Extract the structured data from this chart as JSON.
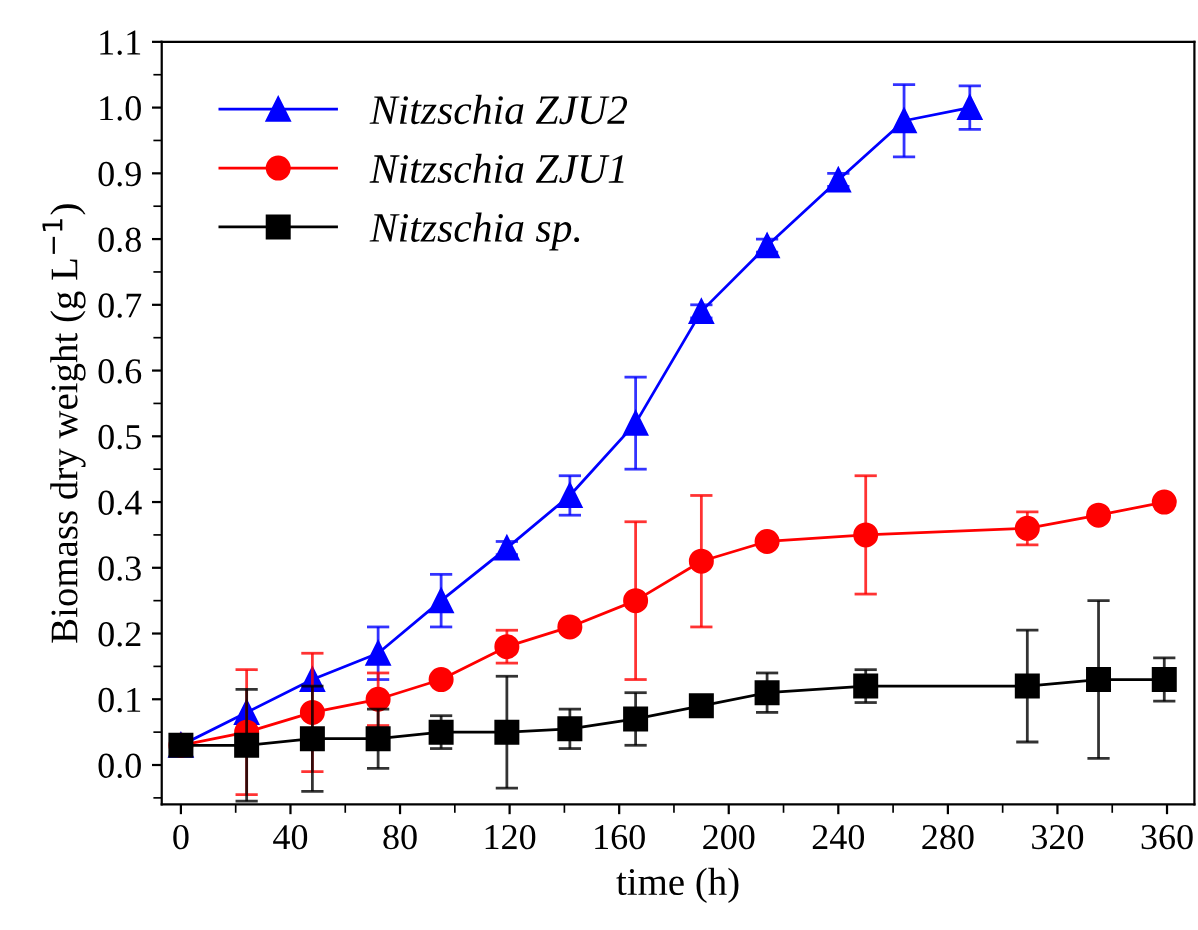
{
  "chart_data": {
    "type": "line",
    "xlabel": "time (h)",
    "ylabel": "Biomass dry weight (g L$^{−1}$)",
    "xlim": [
      -7,
      370
    ],
    "ylim": [
      -0.06,
      1.1
    ],
    "xticks": [
      0,
      40,
      80,
      120,
      160,
      200,
      240,
      280,
      320,
      360
    ],
    "yticks": [
      {
        "value": 0,
        "label": "0.0"
      },
      0.1,
      0.2,
      0.3,
      0.4,
      0.5,
      0.6,
      0.7,
      0.8,
      0.9,
      {
        "value": 1,
        "label": "1.0"
      },
      1.1
    ],
    "grid": false,
    "legend": "top left",
    "line_style": "solid",
    "series": [
      {
        "name": "Nitzschia ZJU2",
        "color": "#0000ff",
        "marker": "triangle",
        "x": [
          0,
          24,
          48,
          72,
          95,
          119,
          142,
          166,
          190,
          214,
          240,
          264,
          288
        ],
        "values": [
          0.03,
          0.08,
          0.13,
          0.17,
          0.25,
          0.33,
          0.41,
          0.52,
          0.69,
          0.79,
          0.89,
          0.98,
          1.0
        ],
        "errors": [
          null,
          null,
          null,
          0.04,
          0.04,
          0.01,
          0.03,
          0.07,
          0.01,
          0.01,
          0.01,
          0.055,
          0.033
        ]
      },
      {
        "name": "Nitzschia ZJU1",
        "color": "#ff0000",
        "marker": "circle",
        "x": [
          0,
          24,
          48,
          72,
          95,
          119,
          142,
          166,
          190,
          214,
          250,
          309,
          335,
          359
        ],
        "values": [
          0.03,
          0.05,
          0.08,
          0.1,
          0.13,
          0.18,
          0.21,
          0.25,
          0.31,
          0.34,
          0.35,
          0.36,
          0.38,
          0.4
        ],
        "errors": [
          null,
          0.095,
          0.09,
          0.04,
          null,
          0.025,
          null,
          0.12,
          0.1,
          null,
          0.09,
          0.025,
          null,
          null
        ]
      },
      {
        "name": "Nitzschia sp.",
        "color": "#000000",
        "marker": "square",
        "x": [
          0,
          24,
          48,
          72,
          95,
          119,
          142,
          166,
          190,
          214,
          250,
          309,
          335,
          359
        ],
        "values": [
          0.03,
          0.03,
          0.04,
          0.04,
          0.05,
          0.05,
          0.055,
          0.07,
          0.09,
          0.11,
          0.12,
          0.12,
          0.13,
          0.13
        ],
        "errors": [
          null,
          0.085,
          0.08,
          0.045,
          0.025,
          0.085,
          0.03,
          0.04,
          null,
          0.03,
          0.025,
          0.085,
          0.12,
          0.033
        ]
      }
    ]
  }
}
